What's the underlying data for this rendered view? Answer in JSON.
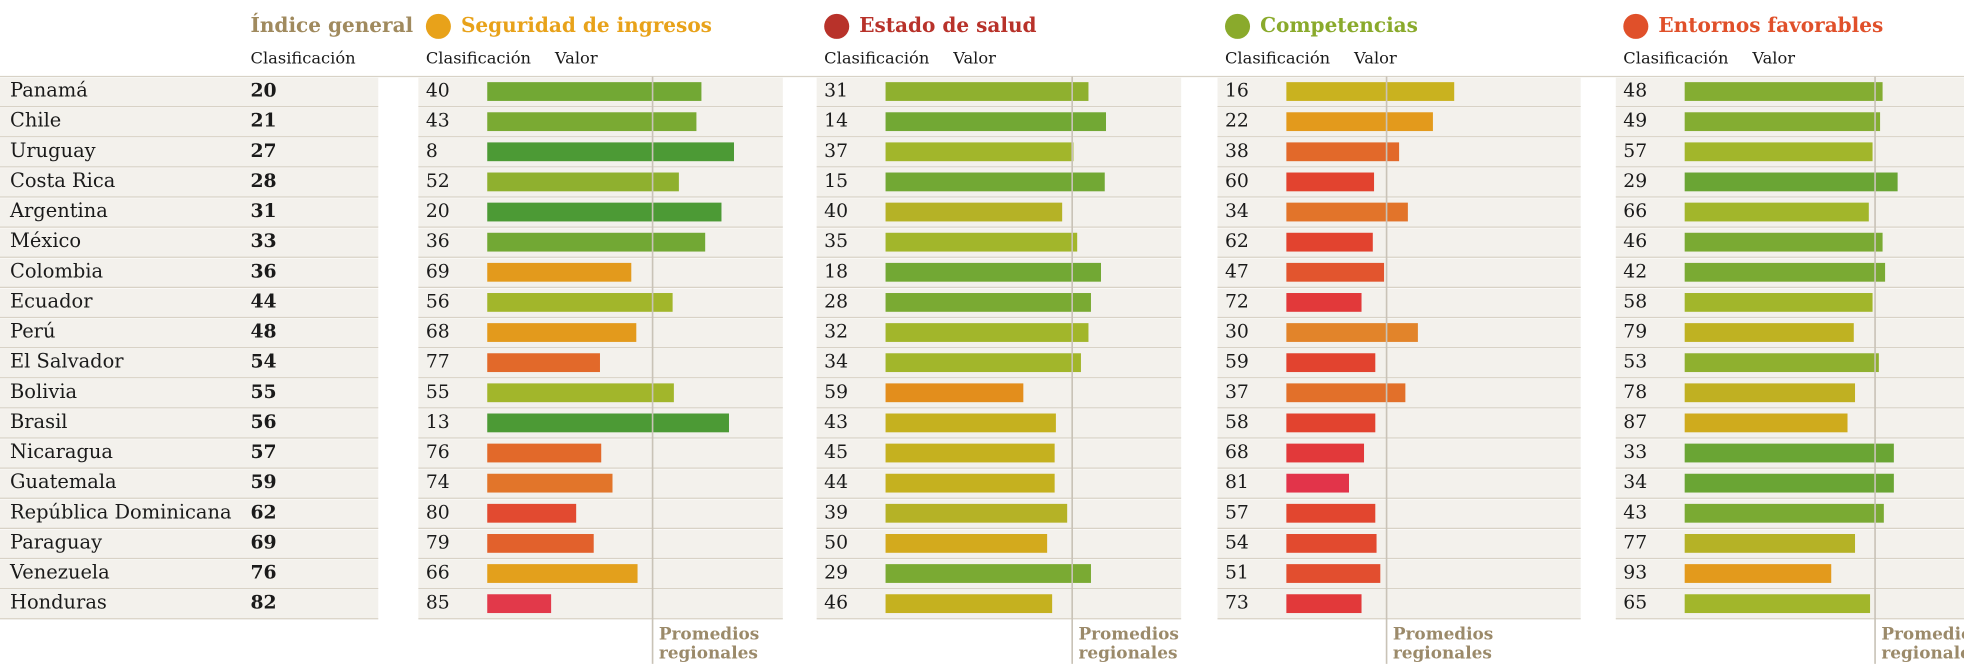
{
  "header": {
    "general_title": "Índice general",
    "general_subtitle": "Clasificación"
  },
  "countries": [
    "Panamá",
    "Chile",
    "Uruguay",
    "Costa Rica",
    "Argentina",
    "México",
    "Colombia",
    "Ecuador",
    "Perú",
    "El Salvador",
    "Bolivia",
    "Brasil",
    "Nicaragua",
    "Guatemala",
    "República Dominicana",
    "Paraguay",
    "Venezuela",
    "Honduras"
  ],
  "general_rank": [
    20,
    21,
    27,
    28,
    31,
    33,
    36,
    44,
    48,
    54,
    55,
    56,
    57,
    59,
    62,
    69,
    76,
    82
  ],
  "sections": [
    {
      "title": "Seguridad de ingresos",
      "title_color": "#e8a21a",
      "rank_label": "Clasificación",
      "value_label": "Valor",
      "ranks": [
        40,
        43,
        8,
        52,
        20,
        36,
        69,
        56,
        68,
        77,
        55,
        13,
        76,
        74,
        80,
        79,
        66,
        85
      ],
      "values": [
        171,
        167,
        197,
        153,
        187,
        174,
        115,
        148,
        119,
        90,
        149,
        193,
        91,
        100,
        71,
        85,
        120,
        51
      ],
      "colors": [
        "#72a834",
        "#7aaa33",
        "#4c9a35",
        "#8fb02f",
        "#4c9a35",
        "#72a834",
        "#e39a1c",
        "#a2b62b",
        "#e39a1c",
        "#e2692a",
        "#a2b62b",
        "#4c9a35",
        "#e2692a",
        "#e2752a",
        "#e24a30",
        "#e2612c",
        "#e3a01c",
        "#e2394a"
      ],
      "average": 132,
      "average_label": [
        "Promedios",
        "regionales"
      ]
    },
    {
      "title": "Estado de salud",
      "title_color": "#b8322a",
      "rank_label": "Clasificación",
      "value_label": "Valor",
      "ranks": [
        31,
        14,
        37,
        15,
        40,
        35,
        18,
        28,
        32,
        34,
        59,
        43,
        45,
        44,
        39,
        50,
        29,
        46
      ],
      "values": [
        162,
        176,
        150,
        175,
        141,
        153,
        172,
        164,
        162,
        156,
        110,
        136,
        135,
        135,
        145,
        129,
        164,
        133
      ],
      "colors": [
        "#8fb02f",
        "#72a834",
        "#a2b62b",
        "#72a834",
        "#b5b226",
        "#a2b62b",
        "#72a834",
        "#7aaa33",
        "#a2b62b",
        "#a2b62b",
        "#e38e1c",
        "#c5b11f",
        "#c5b11f",
        "#c5b11f",
        "#b5b226",
        "#d3aa1d",
        "#7aaa33",
        "#c5b11f"
      ],
      "average": 149,
      "average_label": [
        "Promedios",
        "regionales"
      ]
    },
    {
      "title": "Competencias",
      "title_color": "#8aaa2c",
      "rank_label": "Clasificación",
      "value_label": "Valor",
      "ranks": [
        16,
        22,
        38,
        60,
        34,
        62,
        47,
        72,
        30,
        59,
        37,
        58,
        68,
        81,
        57,
        54,
        51,
        73
      ],
      "values": [
        134,
        117,
        90,
        70,
        97,
        69,
        78,
        60,
        105,
        71,
        95,
        71,
        62,
        50,
        71,
        72,
        75,
        60
      ],
      "colors": [
        "#c9b21f",
        "#e39a1c",
        "#e2692a",
        "#e2432f",
        "#e2742a",
        "#e2432f",
        "#e2552e",
        "#e2393a",
        "#e2842a",
        "#e2432f",
        "#e2702a",
        "#e2432f",
        "#e2393a",
        "#e2344a",
        "#e2462f",
        "#e24a2f",
        "#e24e2f",
        "#e2393a"
      ],
      "average": 80,
      "average_label": [
        "Promedios",
        "regionales"
      ]
    },
    {
      "title": "Entornos favorables",
      "title_color": "#e0502a",
      "rank_label": "Clasificación",
      "value_label": "Valor",
      "ranks": [
        48,
        49,
        57,
        29,
        66,
        46,
        42,
        58,
        79,
        53,
        78,
        87,
        33,
        34,
        43,
        77,
        93,
        65
      ],
      "values": [
        158,
        156,
        150,
        170,
        147,
        158,
        160,
        150,
        135,
        155,
        136,
        130,
        167,
        167,
        159,
        136,
        117,
        148
      ],
      "colors": [
        "#84ad32",
        "#84ad32",
        "#a2b62b",
        "#6aa534",
        "#a2b62b",
        "#7aaa33",
        "#7aaa33",
        "#a2b62b",
        "#bfb222",
        "#8fb02f",
        "#c0b022",
        "#cfab1d",
        "#6aa534",
        "#6aa534",
        "#7aaa33",
        "#b5b226",
        "#e39a1c",
        "#a2b62b"
      ],
      "average": 152,
      "average_label": [
        "Promedios",
        "regionales"
      ]
    }
  ]
}
